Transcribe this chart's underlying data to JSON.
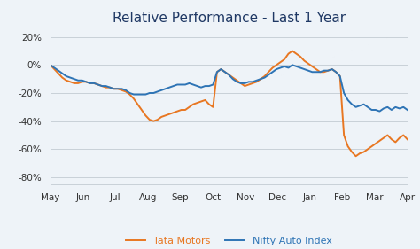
{
  "title": "Relative Performance - Last 1 Year",
  "title_fontsize": 11,
  "background_color": "#EEF3F8",
  "plot_bg_color": "#EEF3F8",
  "grid_color": "#c8d0d8",
  "ylim": [
    -85,
    25
  ],
  "yticks": [
    -80,
    -60,
    -40,
    -20,
    0,
    20
  ],
  "x_labels": [
    "May",
    "Jun",
    "Jul",
    "Aug",
    "Sep",
    "Oct",
    "Nov",
    "Dec",
    "Jan",
    "Feb",
    "Mar",
    "Apr"
  ],
  "tata_color": "#E87722",
  "nifty_color": "#2E74B5",
  "title_color": "#1F3864",
  "legend_labels": [
    "Tata Motors",
    "Nifty Auto Index"
  ],
  "tata_motors": [
    0,
    -3,
    -6,
    -9,
    -11,
    -12,
    -13,
    -13,
    -12,
    -12,
    -13,
    -13,
    -14,
    -15,
    -16,
    -16,
    -17,
    -17,
    -18,
    -19,
    -21,
    -24,
    -28,
    -32,
    -36,
    -39,
    -40,
    -39,
    -37,
    -36,
    -35,
    -34,
    -33,
    -32,
    -32,
    -30,
    -28,
    -27,
    -26,
    -25,
    -28,
    -30,
    -5,
    -3,
    -5,
    -7,
    -9,
    -11,
    -13,
    -15,
    -14,
    -13,
    -12,
    -10,
    -8,
    -5,
    -2,
    0,
    2,
    4,
    8,
    10,
    8,
    6,
    3,
    1,
    -1,
    -3,
    -5,
    -5,
    -4,
    -3,
    -5,
    -8,
    -50,
    -58,
    -62,
    -65,
    -63,
    -62,
    -60,
    -58,
    -56,
    -54,
    -52,
    -50,
    -53,
    -55,
    -52,
    -50,
    -53
  ],
  "nifty_auto": [
    0,
    -2,
    -4,
    -6,
    -8,
    -9,
    -10,
    -11,
    -11,
    -12,
    -13,
    -13,
    -14,
    -15,
    -15,
    -16,
    -17,
    -17,
    -17,
    -18,
    -20,
    -21,
    -21,
    -21,
    -21,
    -20,
    -20,
    -19,
    -18,
    -17,
    -16,
    -15,
    -14,
    -14,
    -14,
    -13,
    -14,
    -15,
    -16,
    -15,
    -15,
    -14,
    -5,
    -3,
    -5,
    -7,
    -10,
    -12,
    -13,
    -13,
    -12,
    -12,
    -11,
    -10,
    -9,
    -7,
    -5,
    -3,
    -2,
    -1,
    -2,
    0,
    -1,
    -2,
    -3,
    -4,
    -5,
    -5,
    -5,
    -4,
    -4,
    -3,
    -5,
    -8,
    -20,
    -25,
    -28,
    -30,
    -29,
    -28,
    -30,
    -32,
    -32,
    -33,
    -31,
    -30,
    -32,
    -30,
    -31,
    -30,
    -32
  ]
}
